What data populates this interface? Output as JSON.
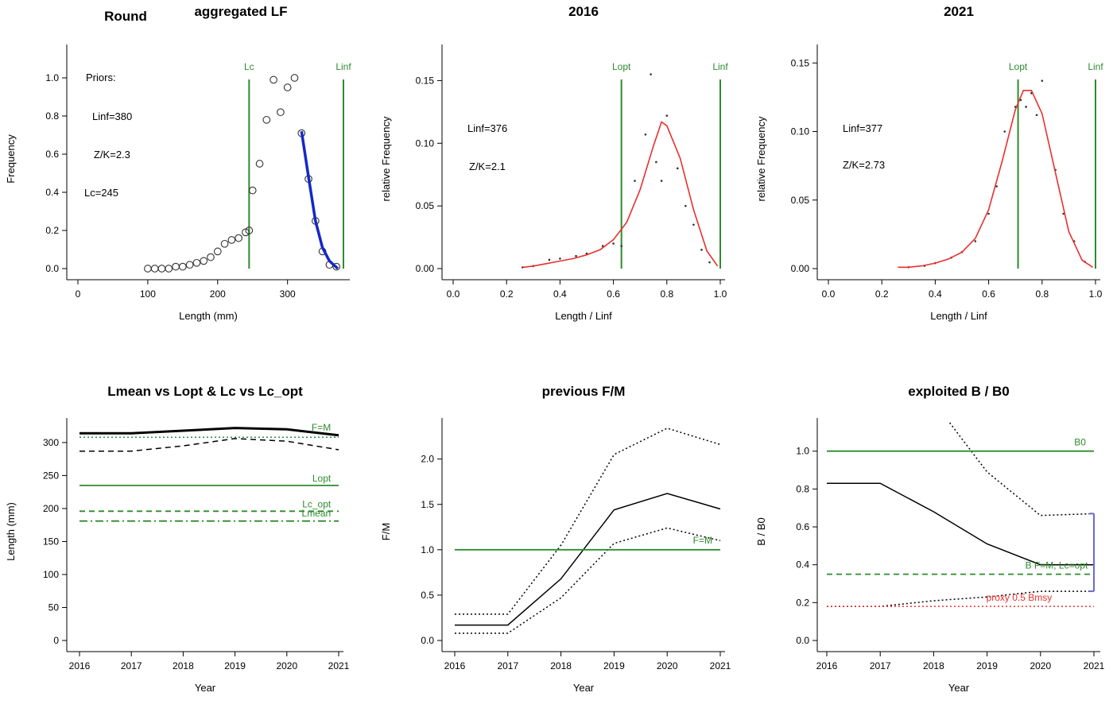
{
  "figure": {
    "main_title": "Round",
    "colors": {
      "green": "#2e8b2e",
      "red": "#e8302e",
      "blue": "#1428c8",
      "line": "#000000",
      "gray": "#444444",
      "purple_bar": "#6a6ae0"
    }
  },
  "chart_data": [
    {
      "id": "p1",
      "type": "scatter",
      "title": "aggregated LF",
      "xlabel": "Length (mm)",
      "ylabel": "Frequency",
      "xlim": [
        0,
        380
      ],
      "ylim": [
        0,
        1.15
      ],
      "xticks": [
        0,
        100,
        200,
        300
      ],
      "yticks": [
        0.0,
        0.2,
        0.4,
        0.6,
        0.8,
        1.0
      ],
      "annotations": [
        "Priors:",
        "Linf=380",
        "Z/K=2.3",
        "Lc=245"
      ],
      "vlines": [
        {
          "x": 245,
          "label": "Lc"
        },
        {
          "x": 380,
          "label": "Linf"
        }
      ],
      "points": {
        "x": [
          100,
          110,
          120,
          130,
          140,
          150,
          160,
          170,
          180,
          190,
          200,
          210,
          220,
          230,
          240,
          245,
          250,
          260,
          270,
          280,
          290,
          300,
          310,
          320,
          330,
          340,
          350,
          360,
          370
        ],
        "y": [
          0.0,
          0.0,
          0.0,
          0.0,
          0.01,
          0.01,
          0.02,
          0.03,
          0.04,
          0.06,
          0.09,
          0.13,
          0.15,
          0.16,
          0.19,
          0.2,
          0.41,
          0.55,
          0.78,
          0.99,
          0.82,
          0.95,
          1.0,
          0.71,
          0.47,
          0.25,
          0.09,
          0.02,
          0.01
        ]
      },
      "fit": {
        "x": [
          320,
          330,
          340,
          350,
          360,
          372
        ],
        "y": [
          0.72,
          0.48,
          0.25,
          0.11,
          0.04,
          0.0
        ]
      }
    },
    {
      "id": "p2",
      "type": "line",
      "title": "2016",
      "xlabel": "Length / Linf",
      "ylabel": "relative Frequency",
      "xlim": [
        0,
        1.0
      ],
      "ylim": [
        0,
        0.175
      ],
      "xticks": [
        0.0,
        0.2,
        0.4,
        0.6,
        0.8,
        1.0
      ],
      "yticks": [
        0.0,
        0.05,
        0.1,
        0.15
      ],
      "annotations": [
        "Linf=376",
        "Z/K=2.1"
      ],
      "vlines": [
        {
          "x": 0.63,
          "label": "Lopt"
        },
        {
          "x": 1.0,
          "label": "Linf"
        }
      ],
      "curve": {
        "x": [
          0.26,
          0.3,
          0.35,
          0.4,
          0.45,
          0.5,
          0.55,
          0.6,
          0.65,
          0.7,
          0.75,
          0.78,
          0.8,
          0.85,
          0.9,
          0.95,
          0.99
        ],
        "y": [
          0.001,
          0.002,
          0.004,
          0.006,
          0.008,
          0.011,
          0.015,
          0.023,
          0.037,
          0.063,
          0.098,
          0.117,
          0.114,
          0.088,
          0.047,
          0.014,
          0.002
        ]
      },
      "points": {
        "x": [
          0.26,
          0.3,
          0.36,
          0.4,
          0.46,
          0.5,
          0.56,
          0.6,
          0.63,
          0.68,
          0.72,
          0.74,
          0.76,
          0.78,
          0.8,
          0.84,
          0.87,
          0.9,
          0.93,
          0.96
        ],
        "y": [
          0.001,
          0.002,
          0.007,
          0.008,
          0.01,
          0.012,
          0.018,
          0.02,
          0.018,
          0.07,
          0.107,
          0.155,
          0.085,
          0.07,
          0.122,
          0.08,
          0.05,
          0.035,
          0.015,
          0.005
        ]
      }
    },
    {
      "id": "p3",
      "type": "line",
      "title": "2021",
      "xlabel": "Length / Linf",
      "ylabel": "relative Frequency",
      "xlim": [
        0,
        1.0
      ],
      "ylim": [
        0,
        0.16
      ],
      "xticks": [
        0.0,
        0.2,
        0.4,
        0.6,
        0.8,
        1.0
      ],
      "yticks": [
        0.0,
        0.05,
        0.1,
        0.15
      ],
      "annotations": [
        "Linf=377",
        "Z/K=2.73"
      ],
      "vlines": [
        {
          "x": 0.71,
          "label": "Lopt"
        },
        {
          "x": 1.0,
          "label": "Linf"
        }
      ],
      "curve": {
        "x": [
          0.26,
          0.3,
          0.35,
          0.4,
          0.45,
          0.5,
          0.55,
          0.6,
          0.65,
          0.7,
          0.73,
          0.76,
          0.8,
          0.85,
          0.9,
          0.95,
          0.99
        ],
        "y": [
          0.001,
          0.001,
          0.002,
          0.004,
          0.007,
          0.012,
          0.022,
          0.043,
          0.078,
          0.116,
          0.13,
          0.13,
          0.113,
          0.07,
          0.027,
          0.006,
          0.001
        ]
      },
      "points": {
        "x": [
          0.3,
          0.36,
          0.4,
          0.46,
          0.5,
          0.55,
          0.6,
          0.63,
          0.66,
          0.7,
          0.72,
          0.74,
          0.76,
          0.78,
          0.8,
          0.85,
          0.88,
          0.92,
          0.96
        ],
        "y": [
          0.001,
          0.002,
          0.004,
          0.008,
          0.012,
          0.02,
          0.04,
          0.06,
          0.1,
          0.118,
          0.123,
          0.118,
          0.128,
          0.112,
          0.137,
          0.072,
          0.04,
          0.02,
          0.005
        ]
      }
    },
    {
      "id": "p4",
      "type": "line",
      "title": "Lmean vs Lopt & Lc vs Lc_opt",
      "xlabel": "Year",
      "ylabel": "Length (mm)",
      "xlim": [
        2016,
        2021
      ],
      "ylim": [
        0,
        330
      ],
      "xticks": [
        2016,
        2017,
        2018,
        2019,
        2020,
        2021
      ],
      "yticks": [
        0,
        50,
        100,
        150,
        200,
        250,
        300
      ],
      "series": [
        {
          "style": "solid-black-thick",
          "x": [
            2016,
            2017,
            2018,
            2019,
            2020,
            2021
          ],
          "y": [
            314,
            314,
            318,
            322,
            320,
            311
          ]
        },
        {
          "style": "dashed-black",
          "x": [
            2016,
            2017,
            2018,
            2019,
            2020,
            2021
          ],
          "y": [
            287,
            287,
            295,
            306,
            302,
            289
          ]
        },
        {
          "style": "dotted-green",
          "x": [
            2016,
            2021
          ],
          "y": [
            308,
            308
          ]
        },
        {
          "style": "solid-green",
          "x": [
            2016,
            2021
          ],
          "y": [
            235,
            235
          ]
        },
        {
          "style": "dashed-green",
          "x": [
            2016,
            2021
          ],
          "y": [
            196,
            196
          ]
        },
        {
          "style": "dashdot-green",
          "x": [
            2016,
            2021
          ],
          "y": [
            181,
            181
          ]
        }
      ],
      "labels": [
        {
          "text": "F=M",
          "x": 2020.85,
          "y": 318
        },
        {
          "text": "Lopt",
          "x": 2020.85,
          "y": 241
        },
        {
          "text": "Lc_opt",
          "x": 2020.85,
          "y": 202
        },
        {
          "text": "Lmean",
          "x": 2020.85,
          "y": 188
        }
      ]
    },
    {
      "id": "p5",
      "type": "line",
      "title": "previous F/M",
      "xlabel": "Year",
      "ylabel": "F/M",
      "xlim": [
        2016,
        2021
      ],
      "ylim": [
        0,
        2.4
      ],
      "xticks": [
        2016,
        2017,
        2018,
        2019,
        2020,
        2021
      ],
      "yticks": [
        0.0,
        0.5,
        1.0,
        1.5,
        2.0
      ],
      "series": [
        {
          "style": "solid-black",
          "x": [
            2016,
            2017,
            2018,
            2019,
            2020,
            2021
          ],
          "y": [
            0.17,
            0.17,
            0.68,
            1.44,
            1.62,
            1.45
          ]
        },
        {
          "style": "dotted-black",
          "x": [
            2016,
            2017,
            2018,
            2019,
            2020,
            2021
          ],
          "y": [
            0.29,
            0.29,
            1.05,
            2.05,
            2.34,
            2.16
          ]
        },
        {
          "style": "dotted-black",
          "x": [
            2016,
            2017,
            2018,
            2019,
            2020,
            2021
          ],
          "y": [
            0.08,
            0.08,
            0.47,
            1.07,
            1.24,
            1.1
          ]
        },
        {
          "style": "solid-green",
          "x": [
            2016,
            2021
          ],
          "y": [
            1.0,
            1.0
          ]
        }
      ],
      "labels": [
        {
          "text": "F=M",
          "x": 2020.85,
          "y": 1.07
        }
      ]
    },
    {
      "id": "p6",
      "type": "line",
      "title": "exploited B / B0",
      "xlabel": "Year",
      "ylabel": "B / B0",
      "xlim": [
        2016,
        2021
      ],
      "ylim": [
        0,
        1.15
      ],
      "xticks": [
        2016,
        2017,
        2018,
        2019,
        2020,
        2021
      ],
      "yticks": [
        0.0,
        0.2,
        0.4,
        0.6,
        0.8,
        1.0
      ],
      "series": [
        {
          "style": "solid-black",
          "x": [
            2016,
            2017,
            2018,
            2019,
            2020,
            2021
          ],
          "y": [
            0.83,
            0.83,
            0.68,
            0.51,
            0.4,
            0.4
          ]
        },
        {
          "style": "dotted-black",
          "x": [
            2018.3,
            2019,
            2020,
            2021
          ],
          "y": [
            1.15,
            0.89,
            0.66,
            0.67
          ]
        },
        {
          "style": "dotted-black",
          "x": [
            2016,
            2017,
            2018,
            2019,
            2020,
            2021
          ],
          "y": [
            0.18,
            0.18,
            0.21,
            0.23,
            0.26,
            0.26
          ]
        },
        {
          "style": "solid-green",
          "x": [
            2016,
            2021
          ],
          "y": [
            1.0,
            1.0
          ]
        },
        {
          "style": "dashed-green",
          "x": [
            2016,
            2021
          ],
          "y": [
            0.35,
            0.35
          ]
        },
        {
          "style": "dotted-red",
          "x": [
            2016,
            2021
          ],
          "y": [
            0.18,
            0.18
          ]
        }
      ],
      "errorbar": {
        "x": 2021,
        "y0": 0.26,
        "y1": 0.67
      },
      "labels": [
        {
          "text": "B0",
          "x": 2020.85,
          "y": 1.03,
          "color": "green"
        },
        {
          "text": "B F=M, Lc=opt",
          "x": 2020.3,
          "y": 0.38,
          "color": "green"
        },
        {
          "text": "proxy 0.5 Bmsy",
          "x": 2019.6,
          "y": 0.21,
          "color": "red"
        }
      ]
    }
  ]
}
